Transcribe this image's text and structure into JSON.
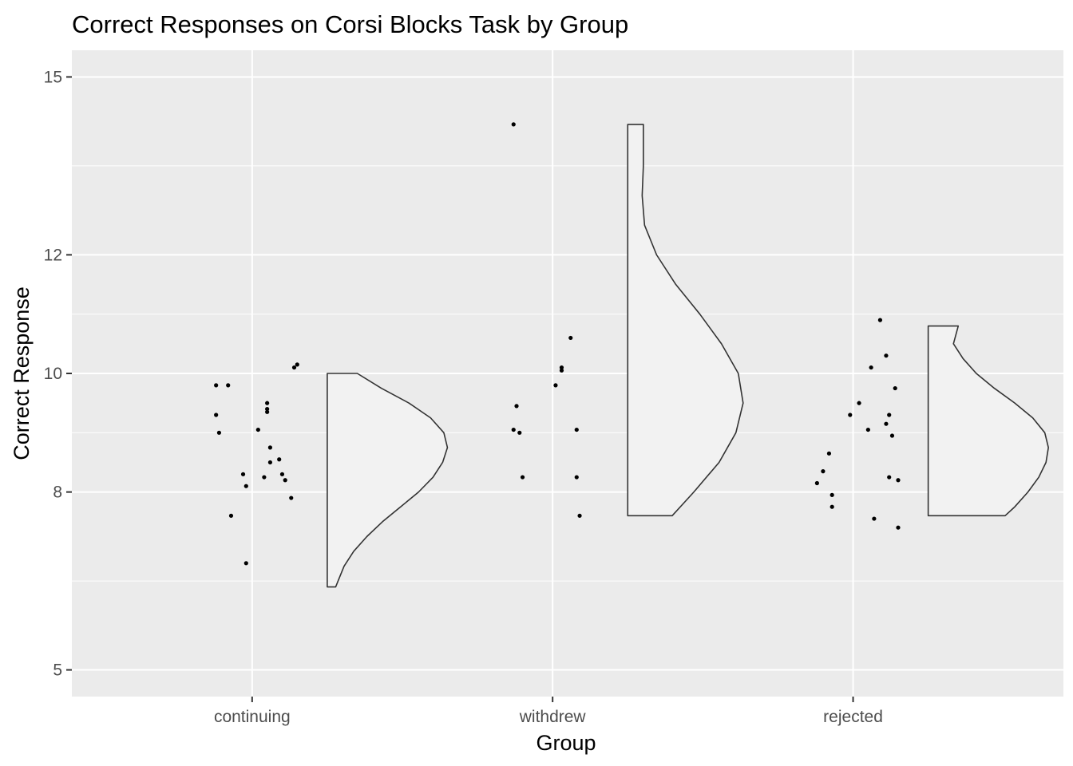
{
  "chart_data": {
    "type": "raincloud",
    "title": "Correct Responses on Corsi Blocks Task by Group",
    "xlabel": "Group",
    "ylabel": "Correct Response",
    "categories": [
      "continuing",
      "withdrew",
      "rejected"
    ],
    "ylim": [
      4.55,
      15.45
    ],
    "yticks": [
      5,
      8,
      10,
      12,
      15
    ],
    "ytick_labels": [
      "5",
      "8",
      "10",
      "12",
      "15"
    ],
    "y_minor_ticks": [
      6.5,
      9,
      11,
      13.5
    ],
    "grid": true,
    "legend": "none",
    "colors": {
      "panel": "#ebebeb",
      "grid": "#ffffff",
      "points": "#000000",
      "violin_fill": "#f2f2f2",
      "violin_outline": "#333333"
    },
    "groups": [
      {
        "name": "continuing",
        "points": [
          {
            "dx": -0.12,
            "y": 9.8
          },
          {
            "dx": -0.08,
            "y": 9.8
          },
          {
            "dx": 0.15,
            "y": 10.15
          },
          {
            "dx": 0.14,
            "y": 10.1
          },
          {
            "dx": -0.12,
            "y": 9.3
          },
          {
            "dx": -0.11,
            "y": 9.0
          },
          {
            "dx": 0.05,
            "y": 9.5
          },
          {
            "dx": 0.05,
            "y": 9.35
          },
          {
            "dx": 0.05,
            "y": 9.4
          },
          {
            "dx": 0.02,
            "y": 9.05
          },
          {
            "dx": 0.06,
            "y": 8.75
          },
          {
            "dx": 0.06,
            "y": 8.5
          },
          {
            "dx": 0.09,
            "y": 8.55
          },
          {
            "dx": -0.03,
            "y": 8.3
          },
          {
            "dx": 0.04,
            "y": 8.25
          },
          {
            "dx": 0.1,
            "y": 8.3
          },
          {
            "dx": 0.11,
            "y": 8.2
          },
          {
            "dx": -0.02,
            "y": 8.1
          },
          {
            "dx": 0.13,
            "y": 7.9
          },
          {
            "dx": -0.07,
            "y": 7.6
          },
          {
            "dx": -0.02,
            "y": 6.8
          }
        ],
        "violin": {
          "min": 6.4,
          "max": 10.0,
          "profile": [
            [
              6.4,
              0.07
            ],
            [
              6.5,
              0.09
            ],
            [
              6.75,
              0.14
            ],
            [
              7.0,
              0.22
            ],
            [
              7.25,
              0.33
            ],
            [
              7.5,
              0.46
            ],
            [
              7.75,
              0.61
            ],
            [
              8.0,
              0.76
            ],
            [
              8.25,
              0.88
            ],
            [
              8.5,
              0.96
            ],
            [
              8.75,
              1.0
            ],
            [
              9.0,
              0.97
            ],
            [
              9.25,
              0.86
            ],
            [
              9.5,
              0.68
            ],
            [
              9.75,
              0.45
            ],
            [
              10.0,
              0.25
            ]
          ]
        }
      },
      {
        "name": "withdrew",
        "points": [
          {
            "dx": -0.13,
            "y": 14.2
          },
          {
            "dx": 0.06,
            "y": 10.6
          },
          {
            "dx": 0.03,
            "y": 10.05
          },
          {
            "dx": 0.03,
            "y": 10.1
          },
          {
            "dx": 0.01,
            "y": 9.8
          },
          {
            "dx": -0.12,
            "y": 9.45
          },
          {
            "dx": -0.13,
            "y": 9.05
          },
          {
            "dx": -0.11,
            "y": 9.0
          },
          {
            "dx": 0.08,
            "y": 9.05
          },
          {
            "dx": -0.1,
            "y": 8.25
          },
          {
            "dx": 0.08,
            "y": 8.25
          },
          {
            "dx": 0.09,
            "y": 7.6
          }
        ],
        "violin": {
          "min": 7.6,
          "max": 14.2,
          "profile": [
            [
              7.6,
              0.37
            ],
            [
              8.0,
              0.55
            ],
            [
              8.5,
              0.76
            ],
            [
              9.0,
              0.9
            ],
            [
              9.5,
              0.96
            ],
            [
              10.0,
              0.92
            ],
            [
              10.5,
              0.78
            ],
            [
              11.0,
              0.6
            ],
            [
              11.5,
              0.4
            ],
            [
              12.0,
              0.24
            ],
            [
              12.5,
              0.14
            ],
            [
              13.0,
              0.12
            ],
            [
              13.5,
              0.13
            ],
            [
              14.0,
              0.13
            ],
            [
              14.2,
              0.13
            ]
          ]
        }
      },
      {
        "name": "rejected",
        "points": [
          {
            "dx": 0.09,
            "y": 10.9
          },
          {
            "dx": 0.11,
            "y": 10.3
          },
          {
            "dx": 0.06,
            "y": 10.1
          },
          {
            "dx": 0.14,
            "y": 9.75
          },
          {
            "dx": 0.02,
            "y": 9.5
          },
          {
            "dx": 0.12,
            "y": 9.3
          },
          {
            "dx": 0.05,
            "y": 9.05
          },
          {
            "dx": 0.13,
            "y": 8.95
          },
          {
            "dx": -0.01,
            "y": 9.3
          },
          {
            "dx": 0.11,
            "y": 9.15
          },
          {
            "dx": -0.08,
            "y": 8.65
          },
          {
            "dx": -0.1,
            "y": 8.35
          },
          {
            "dx": 0.12,
            "y": 8.25
          },
          {
            "dx": 0.15,
            "y": 8.2
          },
          {
            "dx": -0.12,
            "y": 8.15
          },
          {
            "dx": -0.07,
            "y": 7.95
          },
          {
            "dx": -0.07,
            "y": 7.75
          },
          {
            "dx": 0.07,
            "y": 7.55
          },
          {
            "dx": 0.15,
            "y": 7.4
          }
        ],
        "violin": {
          "min": 7.6,
          "max": 10.8,
          "profile": [
            [
              7.6,
              0.64
            ],
            [
              7.75,
              0.72
            ],
            [
              8.0,
              0.83
            ],
            [
              8.25,
              0.92
            ],
            [
              8.5,
              0.98
            ],
            [
              8.75,
              1.0
            ],
            [
              9.0,
              0.97
            ],
            [
              9.25,
              0.87
            ],
            [
              9.5,
              0.72
            ],
            [
              9.75,
              0.55
            ],
            [
              10.0,
              0.4
            ],
            [
              10.25,
              0.29
            ],
            [
              10.5,
              0.21
            ],
            [
              10.8,
              0.25
            ]
          ]
        }
      }
    ]
  }
}
